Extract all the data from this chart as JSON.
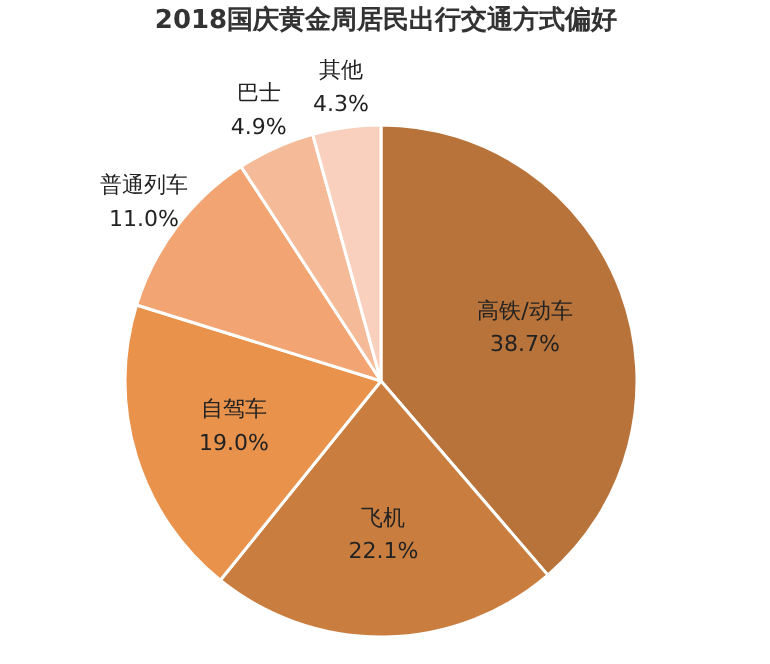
{
  "chart_data": {
    "type": "pie",
    "title": "2018国庆黄金周居民出行交通方式偏好",
    "categories": [
      "高铁/动车",
      "飞机",
      "自驾车",
      "普通列车",
      "巴士",
      "其他"
    ],
    "values": [
      38.7,
      22.1,
      19.0,
      11.0,
      4.9,
      4.3
    ],
    "colors": [
      "#b8733a",
      "#c97e3f",
      "#e8924c",
      "#f2a472",
      "#f5ba98",
      "#f8d0bd"
    ],
    "value_labels": [
      "38.7%",
      "22.1%",
      "19.0%",
      "11.0%",
      "4.9%",
      "4.3%"
    ]
  }
}
